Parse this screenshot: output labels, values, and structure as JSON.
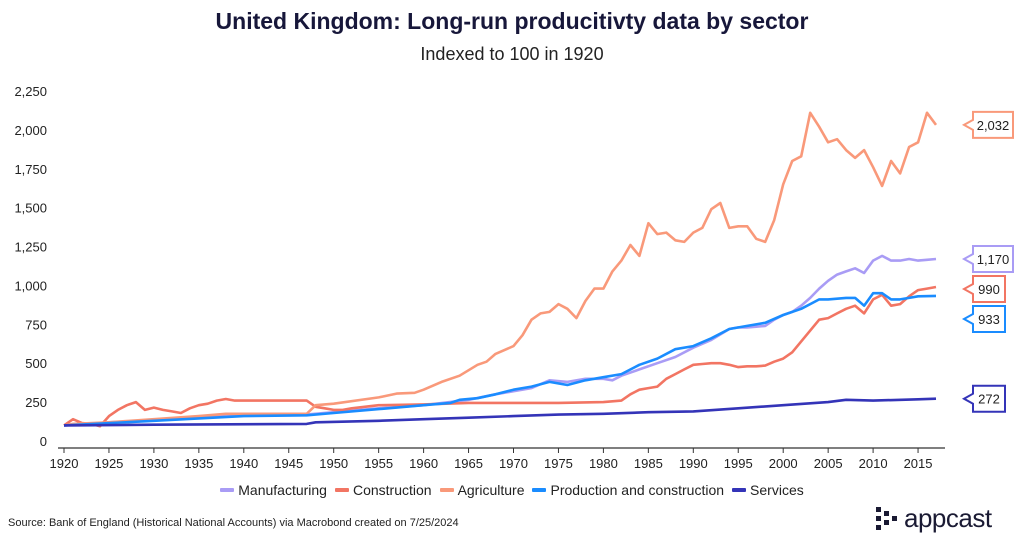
{
  "chart_data": {
    "type": "line",
    "title": "United Kingdom: Long-run producitivty data by sector",
    "subtitle": "Indexed to 100 in 1920",
    "xlabel": "",
    "ylabel": "",
    "xlim": [
      1920,
      2018
    ],
    "ylim": [
      0,
      2250
    ],
    "x_ticks": [
      1920,
      1925,
      1930,
      1935,
      1940,
      1945,
      1950,
      1955,
      1960,
      1965,
      1970,
      1975,
      1980,
      1985,
      1990,
      1995,
      2000,
      2005,
      2010,
      2015
    ],
    "y_ticks": [
      0,
      250,
      500,
      750,
      1000,
      1250,
      1500,
      1750,
      2000,
      2250
    ],
    "y_tick_labels": [
      "0",
      "250",
      "500",
      "750",
      "1,000",
      "1,250",
      "1,500",
      "1,750",
      "2,000",
      "2,250"
    ],
    "grid": false,
    "legend_position": "bottom",
    "series": [
      {
        "name": "Manufacturing",
        "color": "#a99cf5",
        "end_label": "1,170",
        "x": [
          1920,
          1925,
          1930,
          1935,
          1938,
          1947,
          1950,
          1955,
          1960,
          1965,
          1968,
          1970,
          1972,
          1974,
          1976,
          1978,
          1980,
          1981,
          1982,
          1984,
          1986,
          1988,
          1990,
          1992,
          1994,
          1995,
          1996,
          1997,
          1998,
          1999,
          2000,
          2001,
          2002,
          2003,
          2004,
          2005,
          2006,
          2007,
          2008,
          2009,
          2010,
          2011,
          2012,
          2013,
          2014,
          2015,
          2016,
          2017
        ],
        "y": [
          100,
          120,
          135,
          155,
          170,
          170,
          185,
          210,
          230,
          265,
          300,
          320,
          340,
          390,
          380,
          400,
          400,
          390,
          420,
          460,
          500,
          540,
          600,
          650,
          720,
          730,
          730,
          735,
          740,
          780,
          810,
          830,
          870,
          920,
          980,
          1030,
          1070,
          1090,
          1110,
          1080,
          1160,
          1190,
          1160,
          1160,
          1170,
          1160,
          1165,
          1170
        ]
      },
      {
        "name": "Construction",
        "color": "#f27563",
        "end_label": "990",
        "x": [
          1920,
          1921,
          1922,
          1923,
          1924,
          1925,
          1926,
          1927,
          1928,
          1929,
          1930,
          1931,
          1932,
          1933,
          1934,
          1935,
          1936,
          1937,
          1938,
          1939,
          1947,
          1948,
          1949,
          1950,
          1951,
          1952,
          1955,
          1960,
          1965,
          1970,
          1975,
          1980,
          1982,
          1983,
          1984,
          1985,
          1986,
          1987,
          1988,
          1989,
          1990,
          1991,
          1992,
          1993,
          1994,
          1995,
          1996,
          1997,
          1998,
          1999,
          2000,
          2001,
          2002,
          2003,
          2004,
          2005,
          2006,
          2007,
          2008,
          2009,
          2010,
          2011,
          2012,
          2013,
          2014,
          2015,
          2016,
          2017
        ],
        "y": [
          100,
          140,
          115,
          110,
          95,
          160,
          200,
          230,
          250,
          200,
          215,
          200,
          190,
          180,
          210,
          230,
          240,
          260,
          270,
          260,
          260,
          220,
          210,
          200,
          200,
          210,
          230,
          235,
          245,
          245,
          245,
          250,
          260,
          300,
          330,
          340,
          350,
          400,
          430,
          460,
          490,
          495,
          500,
          500,
          490,
          475,
          480,
          480,
          485,
          510,
          530,
          570,
          640,
          710,
          780,
          790,
          820,
          850,
          870,
          820,
          910,
          940,
          870,
          880,
          930,
          970,
          980,
          990
        ]
      },
      {
        "name": "Agriculture",
        "color": "#f9997a",
        "end_label": "2,032",
        "x": [
          1920,
          1921,
          1925,
          1930,
          1935,
          1938,
          1947,
          1948,
          1950,
          1955,
          1957,
          1959,
          1960,
          1962,
          1964,
          1966,
          1967,
          1968,
          1970,
          1971,
          1972,
          1973,
          1974,
          1975,
          1976,
          1977,
          1978,
          1979,
          1980,
          1981,
          1982,
          1983,
          1984,
          1985,
          1986,
          1987,
          1988,
          1989,
          1990,
          1991,
          1992,
          1993,
          1994,
          1995,
          1996,
          1997,
          1998,
          1999,
          2000,
          2001,
          2002,
          2003,
          2004,
          2005,
          2006,
          2007,
          2008,
          2009,
          2010,
          2011,
          2012,
          2013,
          2014,
          2015,
          2016,
          2017
        ],
        "y": [
          100,
          110,
          120,
          140,
          160,
          175,
          175,
          230,
          240,
          280,
          305,
          310,
          330,
          380,
          420,
          490,
          510,
          560,
          610,
          680,
          780,
          820,
          830,
          880,
          850,
          790,
          900,
          980,
          980,
          1090,
          1160,
          1260,
          1190,
          1400,
          1330,
          1340,
          1290,
          1280,
          1340,
          1370,
          1490,
          1530,
          1370,
          1380,
          1380,
          1300,
          1280,
          1420,
          1650,
          1800,
          1830,
          2110,
          2020,
          1920,
          1940,
          1870,
          1820,
          1870,
          1760,
          1640,
          1800,
          1720,
          1890,
          1920,
          2110,
          2032
        ]
      },
      {
        "name": "Production and construction",
        "color": "#1a8cff",
        "end_label": "933",
        "x": [
          1920,
          1930,
          1940,
          1947,
          1950,
          1955,
          1960,
          1963,
          1964,
          1966,
          1968,
          1970,
          1972,
          1974,
          1976,
          1978,
          1980,
          1982,
          1984,
          1986,
          1988,
          1990,
          1992,
          1994,
          1996,
          1998,
          2000,
          2002,
          2003,
          2004,
          2005,
          2006,
          2007,
          2008,
          2009,
          2010,
          2011,
          2012,
          2013,
          2014,
          2015,
          2017
        ],
        "y": [
          100,
          130,
          160,
          165,
          180,
          205,
          230,
          245,
          265,
          275,
          300,
          330,
          350,
          380,
          360,
          390,
          410,
          430,
          490,
          530,
          590,
          610,
          660,
          720,
          740,
          760,
          810,
          850,
          880,
          910,
          910,
          915,
          920,
          920,
          870,
          950,
          950,
          910,
          910,
          920,
          930,
          933
        ]
      },
      {
        "name": "Services",
        "color": "#3434b8",
        "end_label": "272",
        "x": [
          1920,
          1930,
          1947,
          1948,
          1955,
          1960,
          1965,
          1970,
          1975,
          1980,
          1985,
          1990,
          1995,
          2000,
          2005,
          2007,
          2010,
          2015,
          2017
        ],
        "y": [
          100,
          105,
          110,
          120,
          130,
          140,
          150,
          160,
          170,
          175,
          185,
          190,
          210,
          230,
          250,
          265,
          260,
          268,
          272
        ]
      }
    ]
  },
  "source": "Source: Bank of England (Historical National Accounts) via Macrobond created on 7/25/2024",
  "logo": "appcast"
}
